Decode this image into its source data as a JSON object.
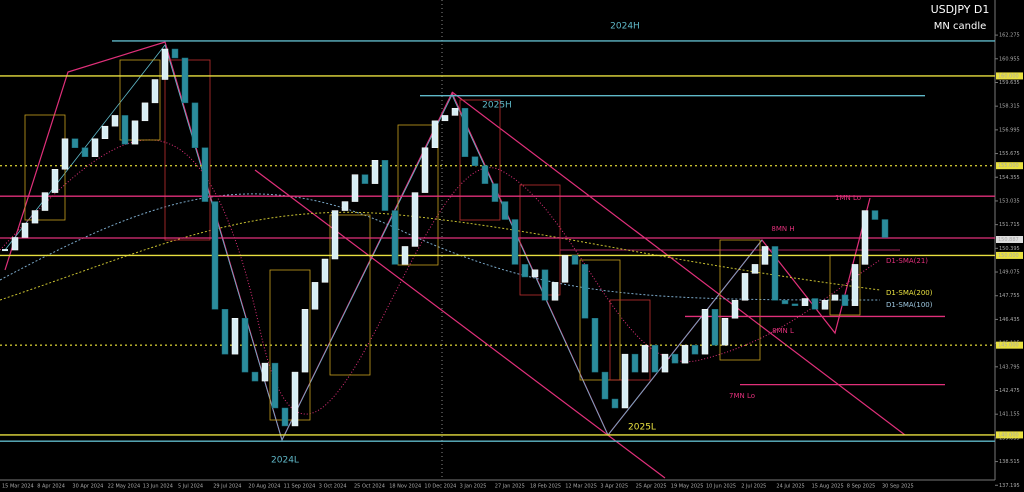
{
  "chart_data": {
    "type": "candlestick",
    "title": "USDJPY D1",
    "subtitle": "MN candle",
    "up_color": "#d8eef4",
    "down_color": "#2b8c9c",
    "values": [
      150.3,
      151.0,
      151.8,
      152.5,
      153.5,
      154.8,
      156.5,
      156.0,
      155.5,
      156.5,
      157.2,
      157.8,
      156.2,
      157.5,
      158.5,
      159.8,
      161.5,
      161.0,
      158.5,
      156.0,
      153.0,
      147.0,
      144.5,
      146.5,
      143.5,
      143.0,
      144.0,
      141.5,
      140.5,
      143.5,
      147.0,
      148.5,
      149.8,
      152.5,
      153.0,
      154.5,
      154.0,
      155.3,
      152.5,
      149.5,
      150.5,
      153.5,
      156.0,
      157.5,
      157.8,
      158.2,
      155.5,
      155.0,
      154.0,
      153.0,
      152.0,
      149.5,
      148.8,
      149.2,
      147.5,
      148.5,
      150.0,
      149.5,
      146.5,
      143.5,
      142.0,
      141.5,
      144.5,
      143.5,
      145.0,
      143.5,
      144.5,
      144.0,
      145.0,
      144.5,
      147.0,
      145.0,
      146.5,
      147.5,
      149.0,
      149.5,
      150.5,
      147.5,
      147.3,
      147.2,
      147.6,
      147.0,
      147.5,
      147.8,
      147.2,
      149.5,
      152.5,
      152.0,
      151.0
    ],
    "x_labels": [
      "15 Mar 2024",
      "8 Apr 2024",
      "30 Apr 2024",
      "22 May 2024",
      "13 Jun 2024",
      "5 Jul 2024",
      "29 Jul 2024",
      "20 Aug 2024",
      "11 Sep 2024",
      "3 Oct 2024",
      "25 Oct 2024",
      "18 Nov 2024",
      "10 Dec 2024",
      "3 Jan 2025",
      "27 Jan 2025",
      "18 Feb 2025",
      "12 Mar 2025",
      "3 Apr 2025",
      "25 Apr 2025",
      "19 May 2025",
      "10 Jun 2025",
      "2 Jul 2025",
      "24 Jul 2025",
      "15 Aug 2025",
      "8 Sep 2025",
      "30 Sep 2025"
    ],
    "ylim": [
      137.6,
      164.23
    ],
    "yticks": [
      162.275,
      160.955,
      159.635,
      158.315,
      156.995,
      155.675,
      154.355,
      153.035,
      151.715,
      150.395,
      149.075,
      147.755,
      146.435,
      145.115,
      143.795,
      142.475,
      141.155,
      139.835,
      138.515,
      137.195
    ],
    "price_labels": [
      {
        "value": 160,
        "label": "160.000"
      },
      {
        "value": 155,
        "label": "155.000"
      },
      {
        "value": 150.887,
        "label": "150.887"
      },
      {
        "value": 150,
        "label": "150.000"
      },
      {
        "value": 145,
        "label": "145.000"
      },
      {
        "value": 140,
        "label": "140.000"
      }
    ],
    "hlines": [
      {
        "value": 161.95,
        "color": "#5fb8c8"
      },
      {
        "value": 160,
        "color": "#e8e040"
      },
      {
        "value": 158.9,
        "color": "#5fb8c8"
      },
      {
        "value": 155,
        "color": "#c8c030"
      },
      {
        "value": 153.3,
        "color": "#e0307a"
      },
      {
        "value": 150.97,
        "color": "#e0307a"
      },
      {
        "value": 150,
        "color": "#e8e040"
      },
      {
        "value": 146.6,
        "color": "#e0307a"
      },
      {
        "value": 145,
        "color": "#c8c030"
      },
      {
        "value": 142.8,
        "color": "#e0307a"
      },
      {
        "value": 140,
        "color": "#e8e040"
      },
      {
        "value": 139.65,
        "color": "#5fb8c8"
      }
    ],
    "annotations": [
      "2024H",
      "2025H",
      "2024L",
      "2025L",
      "1MN Lo",
      "8MN H",
      "8MN L",
      "7MN Lo",
      "D1-SMA(21)",
      "D1-SMA(200)",
      "D1-SMA(100)"
    ]
  }
}
